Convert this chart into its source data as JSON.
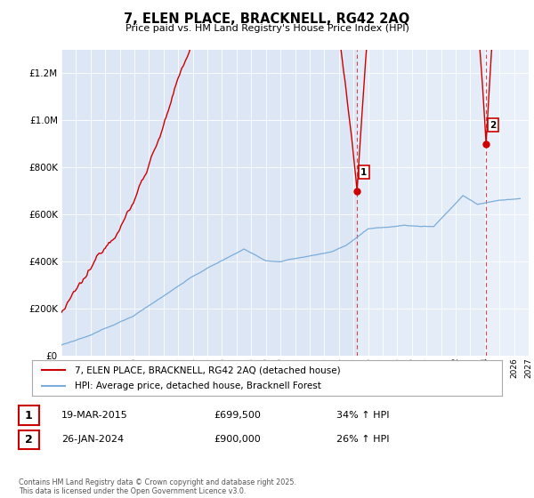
{
  "title": "7, ELEN PLACE, BRACKNELL, RG42 2AQ",
  "subtitle": "Price paid vs. HM Land Registry's House Price Index (HPI)",
  "legend_label_red": "7, ELEN PLACE, BRACKNELL, RG42 2AQ (detached house)",
  "legend_label_blue": "HPI: Average price, detached house, Bracknell Forest",
  "footer": "Contains HM Land Registry data © Crown copyright and database right 2025.\nThis data is licensed under the Open Government Licence v3.0.",
  "annotation1_label": "1",
  "annotation1_date": "19-MAR-2015",
  "annotation1_price": "£699,500",
  "annotation1_hpi": "34% ↑ HPI",
  "annotation2_label": "2",
  "annotation2_date": "26-JAN-2024",
  "annotation2_price": "£900,000",
  "annotation2_hpi": "26% ↑ HPI",
  "red_color": "#cc0000",
  "blue_color": "#7aaddb",
  "bg_shaded_color": "#dce6f5",
  "background_color": "#ffffff",
  "grid_color": "#ffffff",
  "ylim": [
    0,
    1300000
  ],
  "yticks": [
    0,
    200000,
    400000,
    600000,
    800000,
    1000000,
    1200000
  ],
  "xlim_start": 1995.0,
  "xlim_end": 2027.0,
  "red_sale1_x": 2015.21,
  "red_sale1_y": 699500,
  "red_sale2_x": 2024.07,
  "red_sale2_y": 900000
}
